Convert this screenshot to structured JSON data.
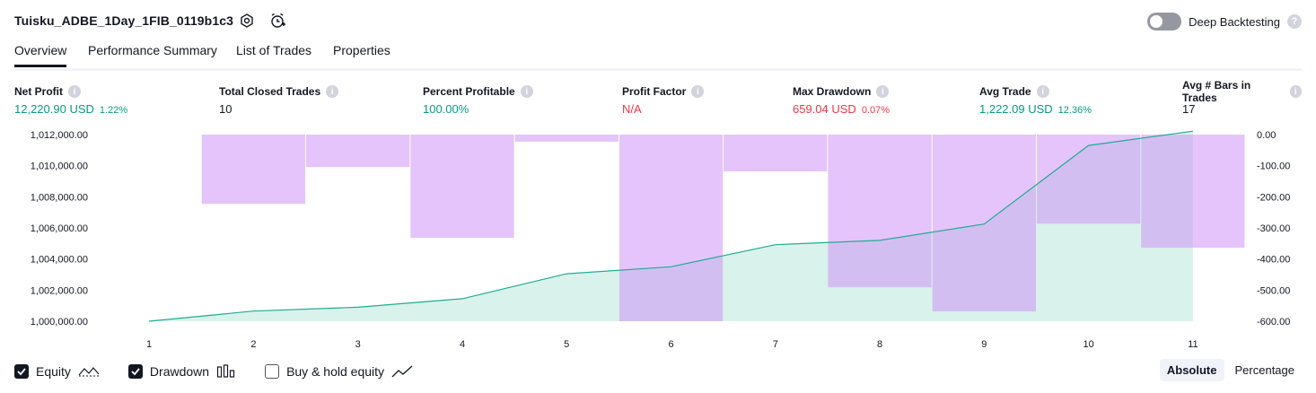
{
  "header": {
    "strategy_name": "Tuisku_ADBE_1Day_1FIB_0119b1c3",
    "settings_icon": "gear-icon",
    "alert_icon": "alarm-clock-plus-icon",
    "deep_backtesting_label": "Deep Backtesting",
    "deep_backtesting_enabled": false,
    "help": "?"
  },
  "tabs": [
    {
      "label": "Overview",
      "active": true
    },
    {
      "label": "Performance Summary",
      "active": false
    },
    {
      "label": "List of Trades",
      "active": false
    },
    {
      "label": "Properties",
      "active": false
    }
  ],
  "stats": [
    {
      "label": "Net Profit",
      "value": "12,220.90 USD",
      "sub": "1.22%",
      "color": "green"
    },
    {
      "label": "Total Closed Trades",
      "value": "10",
      "sub": "",
      "color": "dark"
    },
    {
      "label": "Percent Profitable",
      "value": "100.00%",
      "sub": "",
      "color": "green"
    },
    {
      "label": "Profit Factor",
      "value": "N/A",
      "sub": "",
      "color": "red"
    },
    {
      "label": "Max Drawdown",
      "value": "659.04 USD",
      "sub": "0.07%",
      "color": "red"
    },
    {
      "label": "Avg Trade",
      "value": "1,222.09 USD",
      "sub": "12.36%",
      "color": "green"
    },
    {
      "label": "Avg # Bars in Trades",
      "value": "17",
      "sub": "",
      "color": "dark"
    }
  ],
  "info_glyph": "i",
  "chart_data": {
    "type": "area",
    "x": [
      1,
      2,
      3,
      4,
      5,
      6,
      7,
      8,
      9,
      10,
      11
    ],
    "y_left_ticks": [
      "1,012,000.00",
      "1,010,000.00",
      "1,008,000.00",
      "1,006,000.00",
      "1,004,000.00",
      "1,002,000.00",
      "1,000,000.00"
    ],
    "y_left_range": [
      1000000,
      1012000
    ],
    "y_right_ticks": [
      "0.00",
      "-100.00",
      "-200.00",
      "-300.00",
      "-400.00",
      "-500.00",
      "-600.00"
    ],
    "y_right_range": [
      -660,
      0
    ],
    "series": [
      {
        "name": "Equity",
        "axis": "left",
        "values": [
          1000000,
          1000650,
          1000900,
          1001450,
          1003050,
          1003500,
          1004920,
          1005200,
          1006250,
          1011300,
          1012220
        ]
      },
      {
        "name": "Drawdown",
        "axis": "right",
        "type": "bar",
        "values": [
          0,
          -245,
          -115,
          -365,
          -25,
          -660,
          -130,
          -540,
          -625,
          -315,
          -400
        ]
      }
    ],
    "colors": {
      "equity_line": "#22ab94",
      "equity_fill": "#d9f2ec",
      "drawdown": "#ce93f8",
      "drawdown_fill": "#e1c4fb"
    }
  },
  "legend": [
    {
      "label": "Equity",
      "checked": true,
      "icon": "equity-line-icon"
    },
    {
      "label": "Drawdown",
      "checked": true,
      "icon": "drawdown-bars-icon"
    },
    {
      "label": "Buy & hold equity",
      "checked": false,
      "icon": "buy-hold-line-icon"
    }
  ],
  "modes": [
    {
      "label": "Absolute",
      "active": true
    },
    {
      "label": "Percentage",
      "active": false
    }
  ]
}
